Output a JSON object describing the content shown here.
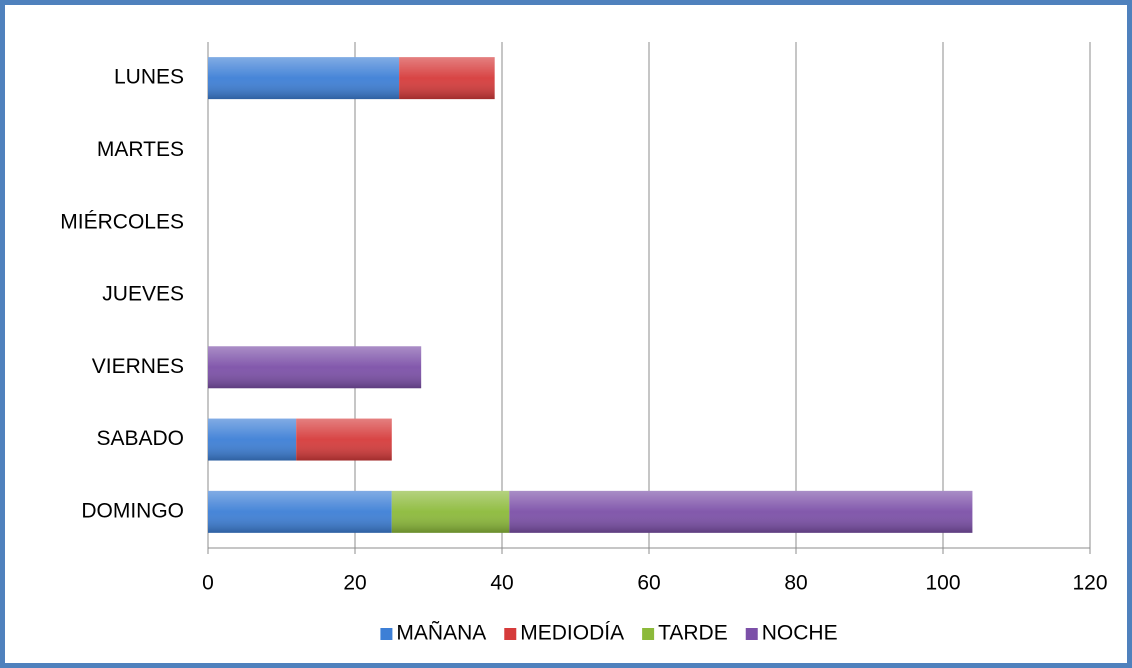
{
  "chart_data": {
    "type": "stacked_barh",
    "categories": [
      "LUNES",
      "MARTES",
      "MIÉRCOLES",
      "JUEVES",
      "VIERNES",
      "SABADO",
      "DOMINGO"
    ],
    "series": [
      {
        "name": "MAÑANA",
        "color": "#3d7fd6",
        "values": [
          26,
          0,
          0,
          0,
          0,
          12,
          25
        ]
      },
      {
        "name": "MEDIODÍA",
        "color": "#d63b3b",
        "values": [
          13,
          0,
          0,
          0,
          0,
          13,
          0
        ]
      },
      {
        "name": "TARDE",
        "color": "#8cba3a",
        "values": [
          0,
          0,
          0,
          0,
          0,
          0,
          16
        ]
      },
      {
        "name": "NOCHE",
        "color": "#7c50a8",
        "values": [
          0,
          0,
          0,
          0,
          29,
          0,
          63
        ]
      }
    ],
    "xlim": [
      0,
      120
    ],
    "xticks": [
      0,
      20,
      40,
      60,
      80,
      100,
      120
    ],
    "grid": true,
    "legend": "bottom"
  }
}
